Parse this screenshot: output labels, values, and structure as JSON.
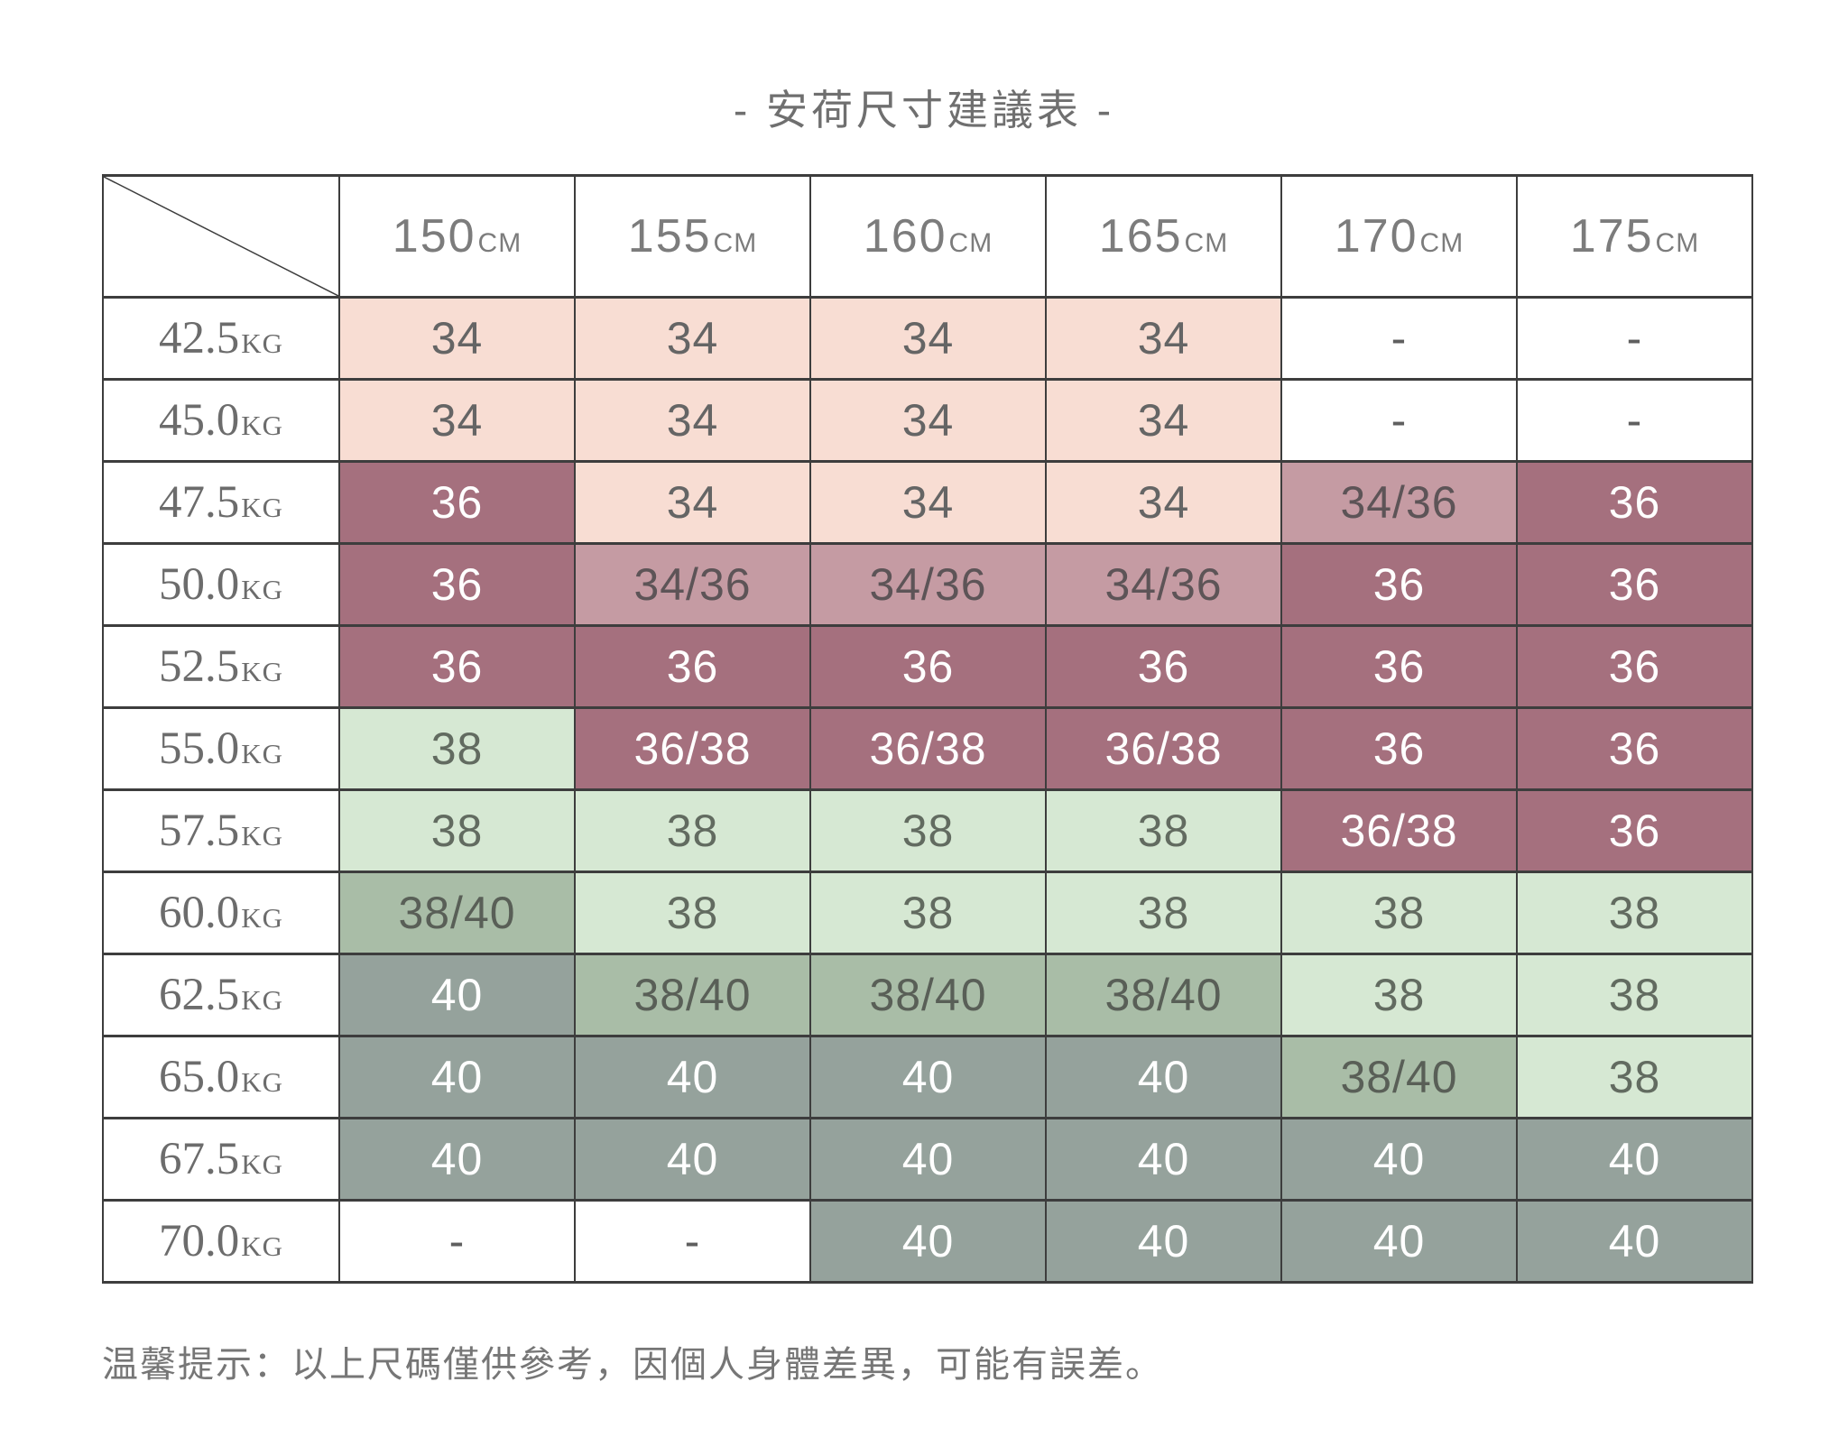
{
  "title": "- 安荷尺寸建議表 -",
  "note": "温馨提示：以上尺碼僅供參考，因個人身體差異，可能有誤差。",
  "cell_styles": {
    "pink": {
      "bg": "#f8ddd3",
      "fg": "#656565"
    },
    "mauveMid": {
      "bg": "#c59ba3",
      "fg": "#5d5457"
    },
    "mauveDark": {
      "bg": "#a5707e",
      "fg": "#ffffff"
    },
    "greenLight": {
      "bg": "#d6e8d3",
      "fg": "#626b60"
    },
    "greenMid": {
      "bg": "#a9bda7",
      "fg": "#595f57"
    },
    "grey": {
      "bg": "#95a29c",
      "fg": "#ffffff"
    },
    "plain": {
      "bg": "#ffffff",
      "fg": "#5f5f5f"
    }
  },
  "chart_data": {
    "type": "table",
    "title": "安荷尺寸建議表",
    "column_unit": "CM",
    "row_unit": "KG",
    "columns": [
      "150",
      "155",
      "160",
      "165",
      "170",
      "175"
    ],
    "rows": [
      {
        "weight": "42.5",
        "cells": [
          {
            "v": "34",
            "s": "pink"
          },
          {
            "v": "34",
            "s": "pink"
          },
          {
            "v": "34",
            "s": "pink"
          },
          {
            "v": "34",
            "s": "pink"
          },
          {
            "v": "-",
            "s": "plain"
          },
          {
            "v": "-",
            "s": "plain"
          }
        ]
      },
      {
        "weight": "45.0",
        "cells": [
          {
            "v": "34",
            "s": "pink"
          },
          {
            "v": "34",
            "s": "pink"
          },
          {
            "v": "34",
            "s": "pink"
          },
          {
            "v": "34",
            "s": "pink"
          },
          {
            "v": "-",
            "s": "plain"
          },
          {
            "v": "-",
            "s": "plain"
          }
        ]
      },
      {
        "weight": "47.5",
        "cells": [
          {
            "v": "36",
            "s": "mauveDark"
          },
          {
            "v": "34",
            "s": "pink"
          },
          {
            "v": "34",
            "s": "pink"
          },
          {
            "v": "34",
            "s": "pink"
          },
          {
            "v": "34/36",
            "s": "mauveMid"
          },
          {
            "v": "36",
            "s": "mauveDark"
          }
        ]
      },
      {
        "weight": "50.0",
        "cells": [
          {
            "v": "36",
            "s": "mauveDark"
          },
          {
            "v": "34/36",
            "s": "mauveMid"
          },
          {
            "v": "34/36",
            "s": "mauveMid"
          },
          {
            "v": "34/36",
            "s": "mauveMid"
          },
          {
            "v": "36",
            "s": "mauveDark"
          },
          {
            "v": "36",
            "s": "mauveDark"
          }
        ]
      },
      {
        "weight": "52.5",
        "cells": [
          {
            "v": "36",
            "s": "mauveDark"
          },
          {
            "v": "36",
            "s": "mauveDark"
          },
          {
            "v": "36",
            "s": "mauveDark"
          },
          {
            "v": "36",
            "s": "mauveDark"
          },
          {
            "v": "36",
            "s": "mauveDark"
          },
          {
            "v": "36",
            "s": "mauveDark"
          }
        ]
      },
      {
        "weight": "55.0",
        "cells": [
          {
            "v": "38",
            "s": "greenLight"
          },
          {
            "v": "36/38",
            "s": "mauveDark"
          },
          {
            "v": "36/38",
            "s": "mauveDark"
          },
          {
            "v": "36/38",
            "s": "mauveDark"
          },
          {
            "v": "36",
            "s": "mauveDark"
          },
          {
            "v": "36",
            "s": "mauveDark"
          }
        ]
      },
      {
        "weight": "57.5",
        "cells": [
          {
            "v": "38",
            "s": "greenLight"
          },
          {
            "v": "38",
            "s": "greenLight"
          },
          {
            "v": "38",
            "s": "greenLight"
          },
          {
            "v": "38",
            "s": "greenLight"
          },
          {
            "v": "36/38",
            "s": "mauveDark"
          },
          {
            "v": "36",
            "s": "mauveDark"
          }
        ]
      },
      {
        "weight": "60.0",
        "cells": [
          {
            "v": "38/40",
            "s": "greenMid"
          },
          {
            "v": "38",
            "s": "greenLight"
          },
          {
            "v": "38",
            "s": "greenLight"
          },
          {
            "v": "38",
            "s": "greenLight"
          },
          {
            "v": "38",
            "s": "greenLight"
          },
          {
            "v": "38",
            "s": "greenLight"
          }
        ]
      },
      {
        "weight": "62.5",
        "cells": [
          {
            "v": "40",
            "s": "grey"
          },
          {
            "v": "38/40",
            "s": "greenMid"
          },
          {
            "v": "38/40",
            "s": "greenMid"
          },
          {
            "v": "38/40",
            "s": "greenMid"
          },
          {
            "v": "38",
            "s": "greenLight"
          },
          {
            "v": "38",
            "s": "greenLight"
          }
        ]
      },
      {
        "weight": "65.0",
        "cells": [
          {
            "v": "40",
            "s": "grey"
          },
          {
            "v": "40",
            "s": "grey"
          },
          {
            "v": "40",
            "s": "grey"
          },
          {
            "v": "40",
            "s": "grey"
          },
          {
            "v": "38/40",
            "s": "greenMid"
          },
          {
            "v": "38",
            "s": "greenLight"
          }
        ]
      },
      {
        "weight": "67.5",
        "cells": [
          {
            "v": "40",
            "s": "grey"
          },
          {
            "v": "40",
            "s": "grey"
          },
          {
            "v": "40",
            "s": "grey"
          },
          {
            "v": "40",
            "s": "grey"
          },
          {
            "v": "40",
            "s": "grey"
          },
          {
            "v": "40",
            "s": "grey"
          }
        ]
      },
      {
        "weight": "70.0",
        "cells": [
          {
            "v": "-",
            "s": "plain"
          },
          {
            "v": "-",
            "s": "plain"
          },
          {
            "v": "40",
            "s": "grey"
          },
          {
            "v": "40",
            "s": "grey"
          },
          {
            "v": "40",
            "s": "grey"
          },
          {
            "v": "40",
            "s": "grey"
          }
        ]
      }
    ]
  }
}
